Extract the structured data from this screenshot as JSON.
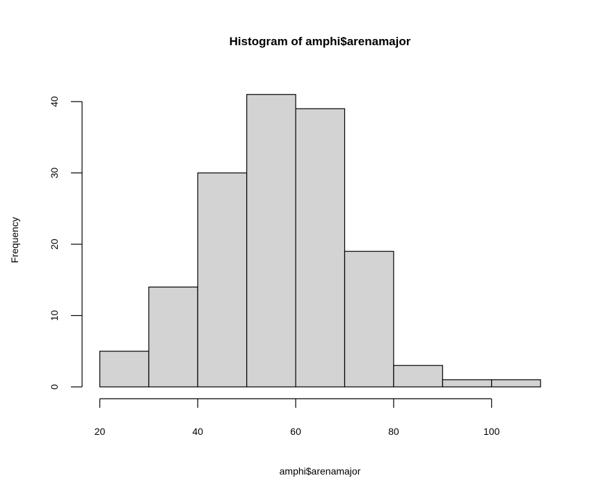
{
  "chart_data": {
    "type": "bar",
    "subtype": "histogram",
    "title": "Histogram of amphi$arenamajor",
    "xlabel": "amphi$arenamajor",
    "ylabel": "Frequency",
    "bins": [
      {
        "from": 20,
        "to": 30,
        "count": 5
      },
      {
        "from": 30,
        "to": 40,
        "count": 14
      },
      {
        "from": 40,
        "to": 50,
        "count": 30
      },
      {
        "from": 50,
        "to": 60,
        "count": 41
      },
      {
        "from": 60,
        "to": 70,
        "count": 39
      },
      {
        "from": 70,
        "to": 80,
        "count": 19
      },
      {
        "from": 80,
        "to": 90,
        "count": 3
      },
      {
        "from": 90,
        "to": 100,
        "count": 1
      },
      {
        "from": 100,
        "to": 110,
        "count": 1
      }
    ],
    "xticks": [
      20,
      40,
      60,
      80,
      100
    ],
    "yticks": [
      0,
      10,
      20,
      30,
      40
    ],
    "xlim": [
      20,
      110
    ],
    "ylim": [
      0,
      41
    ],
    "bar_color": "#d3d3d3",
    "grid": false
  }
}
